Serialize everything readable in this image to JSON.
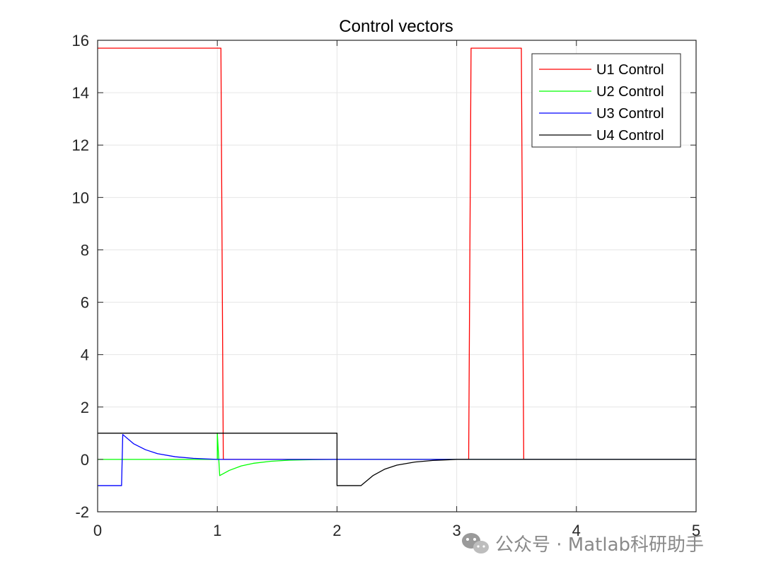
{
  "chart_data": {
    "type": "line",
    "title": "Control vectors",
    "xlabel": "",
    "ylabel": "",
    "xlim": [
      0,
      5
    ],
    "ylim": [
      -2,
      16
    ],
    "xticks": [
      0,
      1,
      2,
      3,
      4,
      5
    ],
    "yticks": [
      -2,
      0,
      2,
      4,
      6,
      8,
      10,
      12,
      14,
      16
    ],
    "grid": true,
    "legend_position": "top-right",
    "series": [
      {
        "name": "U1 Control",
        "color": "#ff0000",
        "x": [
          0,
          1.03,
          1.05,
          3.1,
          3.12,
          3.54,
          3.56,
          5
        ],
        "y": [
          15.7,
          15.7,
          0,
          0,
          15.7,
          15.7,
          0,
          0
        ]
      },
      {
        "name": "U2 Control",
        "color": "#00ff00",
        "x": [
          0,
          1.0,
          1.0,
          1.02,
          1.1,
          1.2,
          1.3,
          1.45,
          1.6,
          1.8,
          2.0,
          5
        ],
        "y": [
          0,
          0,
          1.0,
          -0.62,
          -0.42,
          -0.25,
          -0.15,
          -0.07,
          -0.03,
          -0.01,
          0,
          0
        ]
      },
      {
        "name": "U3 Control",
        "color": "#0000ff",
        "x": [
          0,
          0.2,
          0.21,
          0.3,
          0.4,
          0.5,
          0.65,
          0.8,
          1.0,
          5
        ],
        "y": [
          -1,
          -1,
          0.95,
          0.6,
          0.37,
          0.22,
          0.1,
          0.04,
          0,
          0
        ]
      },
      {
        "name": "U4 Control",
        "color": "#000000",
        "x": [
          0,
          2.0,
          2.0,
          2.2,
          2.3,
          2.4,
          2.5,
          2.65,
          2.8,
          3.0,
          5
        ],
        "y": [
          1,
          1,
          -1,
          -1,
          -0.62,
          -0.37,
          -0.22,
          -0.1,
          -0.04,
          0,
          0
        ]
      }
    ]
  },
  "watermark": {
    "icon": "wechat-icon",
    "text": "公众号 · Matlab科研助手"
  }
}
